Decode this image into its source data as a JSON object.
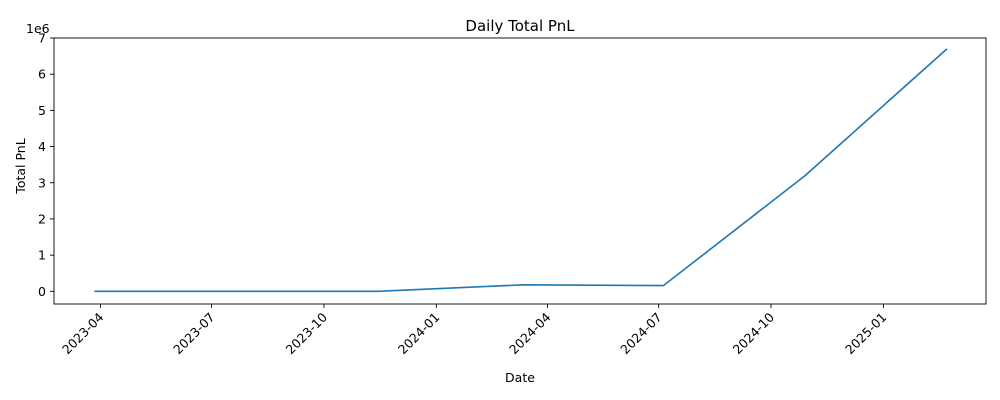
{
  "chart_data": {
    "type": "line",
    "title": "Daily Total PnL",
    "xlabel": "Date",
    "ylabel": "Total PnL",
    "y_multiplier_label": "1e6",
    "x_ticks": [
      "2023-04",
      "2023-07",
      "2023-10",
      "2024-01",
      "2024-04",
      "2024-07",
      "2024-10",
      "2025-01"
    ],
    "y_ticks": [
      0,
      1,
      2,
      3,
      4,
      5,
      6,
      7
    ],
    "y_unit_scale": 1000000,
    "xlim": [
      "2023-02-22",
      "2025-03-26"
    ],
    "ylim": [
      -0.35,
      7.0
    ],
    "grid": false,
    "series": [
      {
        "color": "#1f77b4",
        "x": [
          "2023-03-27",
          "2023-11-15",
          "2024-03-12",
          "2024-07-05",
          "2024-10-29",
          "2025-02-22"
        ],
        "y": [
          0.0,
          0.0,
          0.18,
          0.16,
          3.2,
          6.7
        ]
      }
    ]
  }
}
